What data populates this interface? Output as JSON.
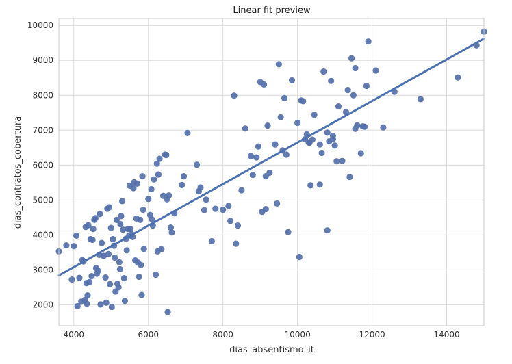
{
  "chart_data": {
    "type": "scatter",
    "title": "Linear fit preview",
    "xlabel": "dias_absentismo_it",
    "ylabel": "dias_contratos_cobertura",
    "xlim": [
      3600,
      15000
    ],
    "ylim": [
      1400,
      10200
    ],
    "xticks": [
      4000,
      6000,
      8000,
      10000,
      12000,
      14000
    ],
    "yticks": [
      2000,
      3000,
      4000,
      5000,
      6000,
      7000,
      8000,
      9000,
      10000
    ],
    "grid": true,
    "legend": "none",
    "colors": {
      "points": "#5470aa",
      "line": "#4c72b0",
      "grid": "#dcdcdc",
      "background": "#ffffff",
      "frame": "#c8c8c8"
    },
    "fit_line": {
      "x": [
        3600,
        15000
      ],
      "y": [
        2840,
        9620
      ]
    },
    "points": [
      [
        3600,
        3530
      ],
      [
        3800,
        3700
      ],
      [
        3950,
        2720
      ],
      [
        4000,
        3680
      ],
      [
        4070,
        3980
      ],
      [
        4100,
        1960
      ],
      [
        4150,
        2770
      ],
      [
        4200,
        2090
      ],
      [
        4230,
        3280
      ],
      [
        4260,
        3240
      ],
      [
        4300,
        2140
      ],
      [
        4320,
        4230
      ],
      [
        4340,
        2620
      ],
      [
        4350,
        2030
      ],
      [
        4370,
        2270
      ],
      [
        4390,
        4280
      ],
      [
        4420,
        2650
      ],
      [
        4450,
        3880
      ],
      [
        4480,
        2820
      ],
      [
        4500,
        3860
      ],
      [
        4520,
        4170
      ],
      [
        4550,
        4430
      ],
      [
        4580,
        4480
      ],
      [
        4600,
        3050
      ],
      [
        4620,
        2890
      ],
      [
        4650,
        2970
      ],
      [
        4680,
        3430
      ],
      [
        4700,
        4600
      ],
      [
        4720,
        2010
      ],
      [
        4750,
        3770
      ],
      [
        4800,
        3400
      ],
      [
        4850,
        2780
      ],
      [
        4870,
        2060
      ],
      [
        4900,
        4750
      ],
      [
        4930,
        3450
      ],
      [
        4950,
        4790
      ],
      [
        4970,
        2590
      ],
      [
        5000,
        4200
      ],
      [
        5020,
        1940
      ],
      [
        5050,
        3880
      ],
      [
        5080,
        3690
      ],
      [
        5100,
        3350
      ],
      [
        5120,
        2380
      ],
      [
        5150,
        4430
      ],
      [
        5170,
        2600
      ],
      [
        5200,
        2500
      ],
      [
        5220,
        3220
      ],
      [
        5240,
        3020
      ],
      [
        5250,
        4310
      ],
      [
        5270,
        4540
      ],
      [
        5300,
        4970
      ],
      [
        5320,
        4150
      ],
      [
        5350,
        2760
      ],
      [
        5370,
        2110
      ],
      [
        5400,
        3890
      ],
      [
        5420,
        3560
      ],
      [
        5450,
        4170
      ],
      [
        5480,
        3980
      ],
      [
        5500,
        5410
      ],
      [
        5520,
        4170
      ],
      [
        5550,
        4020
      ],
      [
        5580,
        3940
      ],
      [
        5600,
        5340
      ],
      [
        5620,
        5510
      ],
      [
        5650,
        3270
      ],
      [
        5680,
        4470
      ],
      [
        5700,
        5470
      ],
      [
        5720,
        3210
      ],
      [
        5750,
        2800
      ],
      [
        5780,
        4430
      ],
      [
        5800,
        3140
      ],
      [
        5820,
        2280
      ],
      [
        5840,
        5680
      ],
      [
        5860,
        4720
      ],
      [
        5880,
        3600
      ],
      [
        6000,
        5030
      ],
      [
        6050,
        4570
      ],
      [
        6080,
        5310
      ],
      [
        6100,
        4440
      ],
      [
        6120,
        4270
      ],
      [
        6150,
        5590
      ],
      [
        6200,
        2860
      ],
      [
        6230,
        6040
      ],
      [
        6250,
        3530
      ],
      [
        6270,
        5730
      ],
      [
        6300,
        6180
      ],
      [
        6350,
        3590
      ],
      [
        6400,
        5120
      ],
      [
        6450,
        6300
      ],
      [
        6480,
        6290
      ],
      [
        6500,
        5020
      ],
      [
        6520,
        1790
      ],
      [
        6550,
        5130
      ],
      [
        6600,
        4210
      ],
      [
        6630,
        4070
      ],
      [
        6700,
        4620
      ],
      [
        6900,
        5430
      ],
      [
        6950,
        5680
      ],
      [
        7050,
        6920
      ],
      [
        7300,
        6010
      ],
      [
        7350,
        5250
      ],
      [
        7400,
        5360
      ],
      [
        7500,
        4710
      ],
      [
        7550,
        5010
      ],
      [
        7700,
        3820
      ],
      [
        7800,
        4750
      ],
      [
        8000,
        4720
      ],
      [
        8150,
        4830
      ],
      [
        8200,
        4400
      ],
      [
        8300,
        7990
      ],
      [
        8350,
        3750
      ],
      [
        8400,
        4270
      ],
      [
        8500,
        5280
      ],
      [
        8600,
        7050
      ],
      [
        8750,
        6260
      ],
      [
        8800,
        5720
      ],
      [
        8900,
        6220
      ],
      [
        8950,
        6530
      ],
      [
        9000,
        8380
      ],
      [
        9050,
        4660
      ],
      [
        9100,
        8310
      ],
      [
        9150,
        5680
      ],
      [
        9150,
        4740
      ],
      [
        9200,
        7130
      ],
      [
        9250,
        5780
      ],
      [
        9400,
        6590
      ],
      [
        9450,
        4900
      ],
      [
        9500,
        8890
      ],
      [
        9550,
        7370
      ],
      [
        9600,
        6420
      ],
      [
        9650,
        7920
      ],
      [
        9700,
        6300
      ],
      [
        9750,
        4080
      ],
      [
        9850,
        8430
      ],
      [
        10000,
        7210
      ],
      [
        10050,
        3370
      ],
      [
        10100,
        7850
      ],
      [
        10150,
        7830
      ],
      [
        10200,
        6740
      ],
      [
        10250,
        6880
      ],
      [
        10300,
        6650
      ],
      [
        10320,
        6640
      ],
      [
        10350,
        5420
      ],
      [
        10400,
        6730
      ],
      [
        10450,
        7440
      ],
      [
        10600,
        5440
      ],
      [
        10600,
        6590
      ],
      [
        10650,
        6350
      ],
      [
        10700,
        8680
      ],
      [
        10800,
        6930
      ],
      [
        10800,
        4130
      ],
      [
        10850,
        6680
      ],
      [
        10900,
        8410
      ],
      [
        10950,
        6840
      ],
      [
        10950,
        6740
      ],
      [
        11000,
        6560
      ],
      [
        11050,
        6110
      ],
      [
        11100,
        7680
      ],
      [
        11200,
        6120
      ],
      [
        11300,
        7520
      ],
      [
        11350,
        8150
      ],
      [
        11400,
        5660
      ],
      [
        11450,
        9060
      ],
      [
        11500,
        8000
      ],
      [
        11550,
        7040
      ],
      [
        11550,
        8780
      ],
      [
        11600,
        7140
      ],
      [
        11700,
        6340
      ],
      [
        11750,
        7110
      ],
      [
        11800,
        7100
      ],
      [
        11850,
        8270
      ],
      [
        11900,
        9540
      ],
      [
        12100,
        8710
      ],
      [
        12300,
        7080
      ],
      [
        12600,
        8100
      ],
      [
        13300,
        7890
      ],
      [
        14300,
        8510
      ],
      [
        14800,
        9430
      ],
      [
        15000,
        9820
      ]
    ]
  }
}
